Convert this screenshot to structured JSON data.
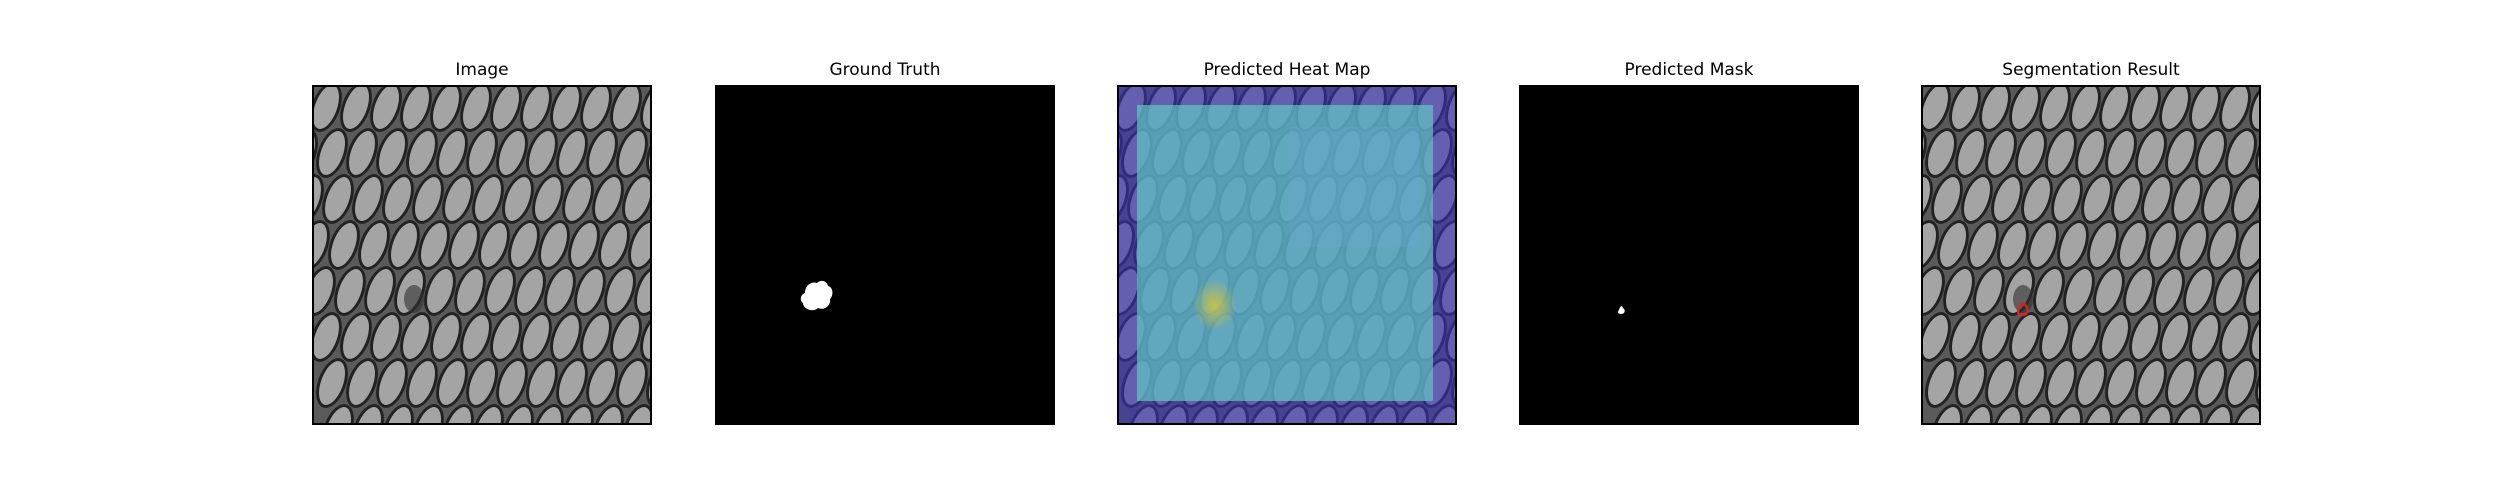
{
  "panels": [
    {
      "title": "Image"
    },
    {
      "title": "Ground Truth"
    },
    {
      "title": "Predicted Heat Map"
    },
    {
      "title": "Predicted Mask"
    },
    {
      "title": "Segmentation Result"
    }
  ],
  "colors": {
    "figure_bg": "#ffffff",
    "texture_base": "#6e6e6e",
    "texture_highlight": "#a4a4a4",
    "texture_dark": "#222222",
    "mask_bg": "#000000",
    "mask_fg": "#ffffff",
    "heatmap_low": "#3b2f9e",
    "heatmap_mid": "#4fb6b8",
    "heatmap_hot": "#b7c24a",
    "segmentation_contour": "#e02020"
  }
}
